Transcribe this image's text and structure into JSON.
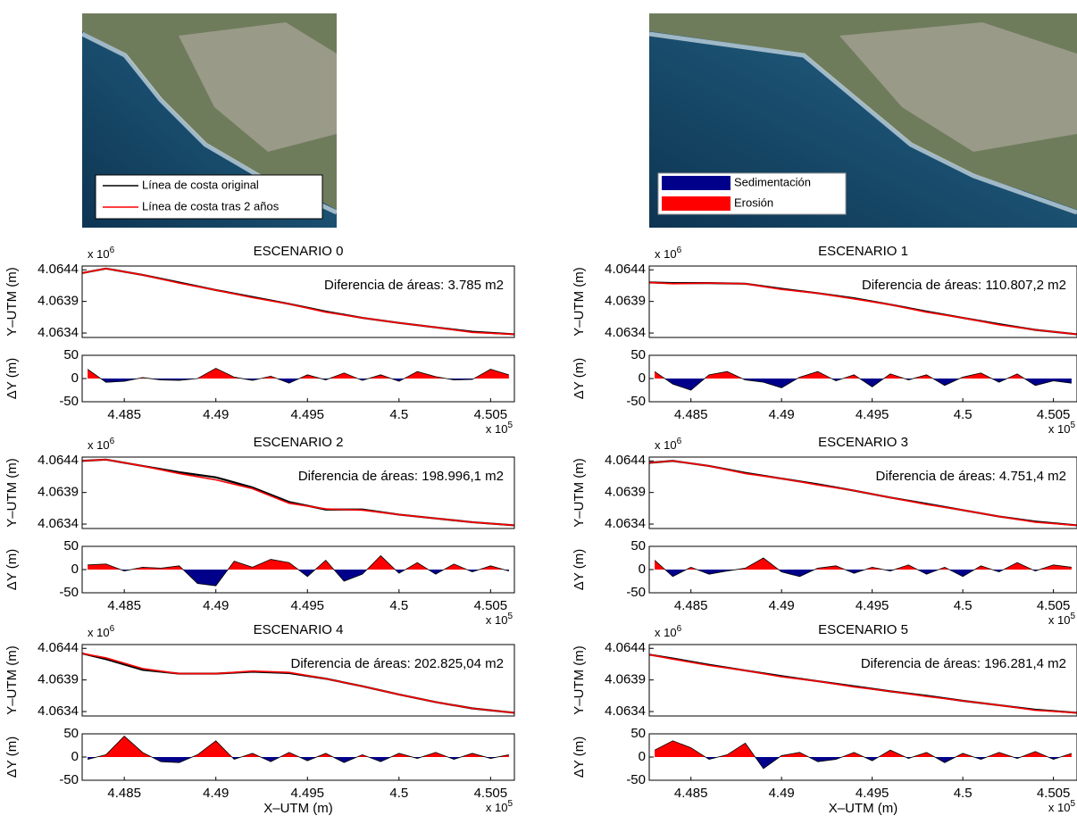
{
  "image_legends": [
    {
      "entries": [
        {
          "label": "Línea de costa original",
          "color": "#000000"
        },
        {
          "label": "Línea de costa tras 2 años",
          "color": "#ff0000"
        }
      ]
    },
    {
      "entries": [
        {
          "label": "Sedimentación",
          "color": "#00008b"
        },
        {
          "label": "Erosión",
          "color": "#ff0000"
        }
      ]
    }
  ],
  "chart_data": [
    {
      "type": "line",
      "title": "ESCENARIO 0",
      "annotation": "Diferencia de áreas: 3.785 m2",
      "ylabel": "Y–UTM (m)",
      "y_exponent_label": {
        "base": "x 10",
        "power": "6"
      },
      "grid": false,
      "x": [
        4.4827,
        4.484,
        4.486,
        4.488,
        4.49,
        4.492,
        4.494,
        4.496,
        4.498,
        4.5,
        4.502,
        4.504,
        4.5063
      ],
      "series": [
        {
          "name": "Línea de costa original",
          "color": "#000000",
          "values": [
            4.06435,
            4.06442,
            4.06432,
            4.0642,
            4.06408,
            4.06397,
            4.06386,
            4.06374,
            4.06364,
            4.06356,
            4.06349,
            4.06342,
            4.06338
          ]
        },
        {
          "name": "Línea de costa tras 2 años",
          "color": "#ff0000",
          "values": [
            4.06435,
            4.06442,
            4.06432,
            4.06419,
            4.06408,
            4.06396,
            4.06386,
            4.06373,
            4.06364,
            4.06356,
            4.06349,
            4.06341,
            4.06338
          ]
        }
      ],
      "xlim": [
        4.4827,
        4.5063
      ],
      "ylim": [
        4.06333,
        4.06446
      ],
      "yticks": [
        4.0634,
        4.0639,
        4.0644
      ]
    },
    {
      "type": "area",
      "ylabel": "ΔY (m)",
      "positive_color": "#ff0000",
      "negative_color": "#00008b",
      "grid": false,
      "x_exponent_label": {
        "base": "x 10",
        "power": "5"
      },
      "x": [
        4.483,
        4.484,
        4.485,
        4.486,
        4.487,
        4.488,
        4.489,
        4.49,
        4.491,
        4.492,
        4.493,
        4.494,
        4.495,
        4.496,
        4.497,
        4.498,
        4.499,
        4.5,
        4.501,
        4.502,
        4.503,
        4.504,
        4.505,
        4.506
      ],
      "values": [
        20,
        -8,
        -6,
        2,
        -3,
        -4,
        0,
        22,
        3,
        -4,
        5,
        -10,
        8,
        -3,
        12,
        -4,
        8,
        -6,
        15,
        4,
        -3,
        -2,
        20,
        8
      ],
      "xlim": [
        4.4827,
        4.5063
      ],
      "xticks": [
        4.485,
        4.49,
        4.495,
        4.5,
        4.505
      ],
      "ylim": [
        -50,
        50
      ],
      "yticks": [
        -50,
        0,
        50
      ]
    },
    {
      "type": "line",
      "title": "ESCENARIO 1",
      "annotation": "Diferencia de áreas: 110.807,2 m2",
      "ylabel": "Y–UTM (m)",
      "y_exponent_label": {
        "base": "x 10",
        "power": "6"
      },
      "grid": false,
      "x": [
        4.4827,
        4.484,
        4.486,
        4.488,
        4.49,
        4.492,
        4.494,
        4.496,
        4.498,
        4.5,
        4.502,
        4.504,
        4.5063
      ],
      "series": [
        {
          "name": "Línea de costa original",
          "color": "#000000",
          "values": [
            4.0642,
            4.06419,
            4.06419,
            4.06418,
            4.0641,
            4.06403,
            4.06395,
            4.06385,
            4.06374,
            4.06364,
            4.06354,
            4.06345,
            4.06338
          ]
        },
        {
          "name": "Línea de costa tras 2 años",
          "color": "#ff0000",
          "values": [
            4.0642,
            4.06418,
            4.06419,
            4.06418,
            4.06409,
            4.06403,
            4.06394,
            4.06385,
            4.06373,
            4.06364,
            4.06353,
            4.06345,
            4.06338
          ]
        }
      ],
      "xlim": [
        4.4827,
        4.5063
      ],
      "ylim": [
        4.06333,
        4.06446
      ],
      "yticks": [
        4.0634,
        4.0639,
        4.0644
      ]
    },
    {
      "type": "area",
      "ylabel": "ΔY (m)",
      "positive_color": "#ff0000",
      "negative_color": "#00008b",
      "grid": false,
      "x_exponent_label": {
        "base": "x 10",
        "power": "5"
      },
      "x": [
        4.483,
        4.484,
        4.485,
        4.486,
        4.487,
        4.488,
        4.489,
        4.49,
        4.491,
        4.492,
        4.493,
        4.494,
        4.495,
        4.496,
        4.497,
        4.498,
        4.499,
        4.5,
        4.501,
        4.502,
        4.503,
        4.504,
        4.505,
        4.506
      ],
      "values": [
        15,
        -12,
        -25,
        8,
        15,
        -3,
        -8,
        -20,
        3,
        15,
        -5,
        8,
        -18,
        10,
        -3,
        8,
        -15,
        3,
        12,
        -8,
        10,
        -15,
        -5,
        -10
      ],
      "xlim": [
        4.4827,
        4.5063
      ],
      "xticks": [
        4.485,
        4.49,
        4.495,
        4.5,
        4.505
      ],
      "ylim": [
        -50,
        50
      ],
      "yticks": [
        -50,
        0,
        50
      ]
    },
    {
      "type": "line",
      "title": "ESCENARIO 2",
      "annotation": "Diferencia de áreas: 198.996,1 m2",
      "ylabel": "Y–UTM (m)",
      "y_exponent_label": {
        "base": "x 10",
        "power": "6"
      },
      "grid": false,
      "x": [
        4.4827,
        4.484,
        4.486,
        4.488,
        4.49,
        4.492,
        4.494,
        4.496,
        4.498,
        4.5,
        4.502,
        4.504,
        4.5063
      ],
      "series": [
        {
          "name": "Línea de costa original",
          "color": "#000000",
          "values": [
            4.0644,
            4.06442,
            4.06432,
            4.06422,
            4.06414,
            4.06398,
            4.06375,
            4.06363,
            4.06363,
            4.06355,
            4.06349,
            4.06343,
            4.06338
          ]
        },
        {
          "name": "Línea de costa tras 2 años",
          "color": "#ff0000",
          "values": [
            4.0644,
            4.06442,
            4.06432,
            4.0642,
            4.0641,
            4.06396,
            4.06373,
            4.06364,
            4.06362,
            4.06355,
            4.06349,
            4.06343,
            4.06338
          ]
        }
      ],
      "xlim": [
        4.4827,
        4.5063
      ],
      "ylim": [
        4.06333,
        4.06446
      ],
      "yticks": [
        4.0634,
        4.0639,
        4.0644
      ]
    },
    {
      "type": "area",
      "ylabel": "ΔY (m)",
      "positive_color": "#ff0000",
      "negative_color": "#00008b",
      "grid": false,
      "x_exponent_label": {
        "base": "x 10",
        "power": "5"
      },
      "x": [
        4.483,
        4.484,
        4.485,
        4.486,
        4.487,
        4.488,
        4.489,
        4.49,
        4.491,
        4.492,
        4.493,
        4.494,
        4.495,
        4.496,
        4.497,
        4.498,
        4.499,
        4.5,
        4.501,
        4.502,
        4.503,
        4.504,
        4.505,
        4.506
      ],
      "values": [
        10,
        12,
        -3,
        5,
        3,
        8,
        -30,
        -35,
        18,
        5,
        22,
        15,
        -15,
        20,
        -25,
        -10,
        30,
        -8,
        15,
        -10,
        12,
        -5,
        8,
        -3
      ],
      "xlim": [
        4.4827,
        4.5063
      ],
      "xticks": [
        4.485,
        4.49,
        4.495,
        4.5,
        4.505
      ],
      "ylim": [
        -50,
        50
      ],
      "yticks": [
        -50,
        0,
        50
      ]
    },
    {
      "type": "line",
      "title": "ESCENARIO 3",
      "annotation": "Diferencia de áreas: 4.751,4 m2",
      "ylabel": "Y–UTM (m)",
      "y_exponent_label": {
        "base": "x 10",
        "power": "6"
      },
      "grid": false,
      "x": [
        4.4827,
        4.484,
        4.486,
        4.488,
        4.49,
        4.492,
        4.494,
        4.496,
        4.498,
        4.5,
        4.502,
        4.504,
        4.5063
      ],
      "series": [
        {
          "name": "Línea de costa original",
          "color": "#000000",
          "values": [
            4.06437,
            4.0644,
            4.06432,
            4.06421,
            4.06412,
            4.06403,
            4.06393,
            4.06382,
            4.06372,
            4.06362,
            4.06352,
            4.06344,
            4.06338
          ]
        },
        {
          "name": "Línea de costa tras 2 años",
          "color": "#ff0000",
          "values": [
            4.06437,
            4.0644,
            4.06432,
            4.0642,
            4.06412,
            4.06402,
            4.06393,
            4.06382,
            4.06371,
            4.06362,
            4.06352,
            4.06343,
            4.06338
          ]
        }
      ],
      "xlim": [
        4.4827,
        4.5063
      ],
      "ylim": [
        4.06333,
        4.06446
      ],
      "yticks": [
        4.0634,
        4.0639,
        4.0644
      ]
    },
    {
      "type": "area",
      "ylabel": "ΔY (m)",
      "positive_color": "#ff0000",
      "negative_color": "#00008b",
      "grid": false,
      "x_exponent_label": {
        "base": "x 10",
        "power": "5"
      },
      "x": [
        4.483,
        4.484,
        4.485,
        4.486,
        4.487,
        4.488,
        4.489,
        4.49,
        4.491,
        4.492,
        4.493,
        4.494,
        4.495,
        4.496,
        4.497,
        4.498,
        4.499,
        4.5,
        4.501,
        4.502,
        4.503,
        4.504,
        4.505,
        4.506
      ],
      "values": [
        20,
        -15,
        5,
        -10,
        -3,
        3,
        25,
        -5,
        -15,
        3,
        8,
        -8,
        5,
        -3,
        10,
        -10,
        5,
        -15,
        8,
        -5,
        15,
        -3,
        10,
        5
      ],
      "xlim": [
        4.4827,
        4.5063
      ],
      "xticks": [
        4.485,
        4.49,
        4.495,
        4.5,
        4.505
      ],
      "ylim": [
        -50,
        50
      ],
      "yticks": [
        -50,
        0,
        50
      ]
    },
    {
      "type": "line",
      "title": "ESCENARIO 4",
      "annotation": "Diferencia de áreas: 202.825,04 m2",
      "ylabel": "Y–UTM (m)",
      "y_exponent_label": {
        "base": "x 10",
        "power": "6"
      },
      "grid": false,
      "x": [
        4.4827,
        4.484,
        4.486,
        4.488,
        4.49,
        4.492,
        4.494,
        4.496,
        4.498,
        4.5,
        4.502,
        4.504,
        4.5063
      ],
      "series": [
        {
          "name": "Línea de costa original",
          "color": "#000000",
          "values": [
            4.06432,
            4.06423,
            4.06406,
            4.064,
            4.064,
            4.06403,
            4.06401,
            4.06392,
            4.0638,
            4.06367,
            4.06355,
            4.06345,
            4.06338
          ]
        },
        {
          "name": "Línea de costa tras 2 años",
          "color": "#ff0000",
          "values": [
            4.06432,
            4.06425,
            4.06408,
            4.064,
            4.064,
            4.06404,
            4.06402,
            4.06392,
            4.0638,
            4.06367,
            4.06355,
            4.06345,
            4.06338
          ]
        }
      ],
      "xlim": [
        4.4827,
        4.5063
      ],
      "ylim": [
        4.06333,
        4.06446
      ],
      "yticks": [
        4.0634,
        4.0639,
        4.0644
      ]
    },
    {
      "type": "area",
      "ylabel": "ΔY (m)",
      "xlabel": "X–UTM (m)",
      "positive_color": "#ff0000",
      "negative_color": "#00008b",
      "grid": false,
      "x_exponent_label": {
        "base": "x 10",
        "power": "5"
      },
      "x": [
        4.483,
        4.484,
        4.485,
        4.486,
        4.487,
        4.488,
        4.489,
        4.49,
        4.491,
        4.492,
        4.493,
        4.494,
        4.495,
        4.496,
        4.497,
        4.498,
        4.499,
        4.5,
        4.501,
        4.502,
        4.503,
        4.504,
        4.505,
        4.506
      ],
      "values": [
        -5,
        5,
        45,
        10,
        -10,
        -12,
        5,
        35,
        -5,
        8,
        -10,
        10,
        -8,
        8,
        -12,
        5,
        -10,
        8,
        -3,
        10,
        -5,
        8,
        -3,
        5
      ],
      "xlim": [
        4.4827,
        4.5063
      ],
      "xticks": [
        4.485,
        4.49,
        4.495,
        4.5,
        4.505
      ],
      "ylim": [
        -50,
        50
      ],
      "yticks": [
        -50,
        0,
        50
      ]
    },
    {
      "type": "line",
      "title": "ESCENARIO 5",
      "annotation": "Diferencia de áreas: 196.281,4 m2",
      "ylabel": "Y–UTM (m)",
      "y_exponent_label": {
        "base": "x 10",
        "power": "6"
      },
      "grid": false,
      "x": [
        4.4827,
        4.484,
        4.486,
        4.488,
        4.49,
        4.492,
        4.494,
        4.496,
        4.498,
        4.5,
        4.502,
        4.504,
        4.5063
      ],
      "series": [
        {
          "name": "Línea de costa original",
          "color": "#000000",
          "values": [
            4.0643,
            4.06424,
            4.06414,
            4.06405,
            4.06396,
            4.06388,
            4.0638,
            4.06372,
            4.06365,
            4.06357,
            4.0635,
            4.06343,
            4.06338
          ]
        },
        {
          "name": "Línea de costa tras 2 años",
          "color": "#ff0000",
          "values": [
            4.0643,
            4.06423,
            4.06413,
            4.06405,
            4.06395,
            4.06388,
            4.06379,
            4.06372,
            4.06364,
            4.06357,
            4.0635,
            4.06342,
            4.06338
          ]
        }
      ],
      "xlim": [
        4.4827,
        4.5063
      ],
      "ylim": [
        4.06333,
        4.06446
      ],
      "yticks": [
        4.0634,
        4.0639,
        4.0644
      ]
    },
    {
      "type": "area",
      "ylabel": "ΔY (m)",
      "xlabel": "X–UTM (m)",
      "positive_color": "#ff0000",
      "negative_color": "#00008b",
      "grid": false,
      "x_exponent_label": {
        "base": "x 10",
        "power": "5"
      },
      "x": [
        4.483,
        4.484,
        4.485,
        4.486,
        4.487,
        4.488,
        4.489,
        4.49,
        4.491,
        4.492,
        4.493,
        4.494,
        4.495,
        4.496,
        4.497,
        4.498,
        4.499,
        4.5,
        4.501,
        4.502,
        4.503,
        4.504,
        4.505,
        4.506
      ],
      "values": [
        15,
        35,
        20,
        -5,
        5,
        30,
        -25,
        3,
        10,
        -10,
        -5,
        10,
        -8,
        15,
        -3,
        10,
        -12,
        8,
        -5,
        10,
        -3,
        12,
        -5,
        8
      ],
      "xlim": [
        4.4827,
        4.5063
      ],
      "xticks": [
        4.485,
        4.49,
        4.495,
        4.5,
        4.505
      ],
      "ylim": [
        -50,
        50
      ],
      "yticks": [
        -50,
        0,
        50
      ]
    }
  ]
}
